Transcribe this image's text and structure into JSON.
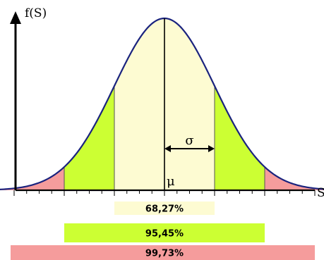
{
  "chart_data": {
    "type": "area",
    "title": "",
    "ylabel": "f(S)",
    "xlabel": "S",
    "mean_label": "μ",
    "sigma_label": "σ",
    "distribution": "normal",
    "xlim": [
      -3.3,
      3.3
    ],
    "grid": false,
    "regions": [
      {
        "name": "68,27%",
        "from_sigma": -1,
        "to_sigma": 1,
        "color": "#fdfbd2"
      },
      {
        "name": "95,45%",
        "from_sigma": -2,
        "to_sigma": 2,
        "color": "#ccff33"
      },
      {
        "name": "99,73%",
        "from_sigma": -3,
        "to_sigma": 3,
        "color": "#f59c9c"
      }
    ],
    "bands": [
      {
        "label": "68,27%",
        "from_sigma": -1,
        "to_sigma": 1,
        "color": "#fdfbd2"
      },
      {
        "label": "95,45%",
        "from_sigma": -2,
        "to_sigma": 2,
        "color": "#ccff33"
      },
      {
        "label": "99,73%",
        "from_sigma": -3.3,
        "to_sigma": 3.3,
        "color": "#f59c9c"
      }
    ],
    "curve_color": "#1a237e"
  }
}
